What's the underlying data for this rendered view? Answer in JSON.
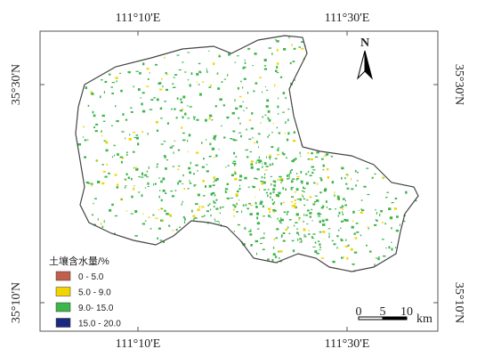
{
  "axes": {
    "top": [
      "111°10'E",
      "111°30'E"
    ],
    "bottom": [
      "111°10'E",
      "111°30'E"
    ],
    "left": [
      "35°30'N",
      "35°10'N"
    ],
    "right": [
      "35°30'N",
      "35°10'N"
    ]
  },
  "north": "N",
  "legend": {
    "title": "土壤含水量/%",
    "items": [
      {
        "label": "0 - 5.0",
        "color": "#c1604a"
      },
      {
        "label": "5.0 - 9.0",
        "color": "#f2d400"
      },
      {
        "label": "9.0- 15.0",
        "color": "#3cb54a"
      },
      {
        "label": "15.0 - 20.0",
        "color": "#1b2a80"
      }
    ]
  },
  "scale": {
    "ticks": [
      "0",
      "5",
      "10"
    ],
    "unit": "km"
  }
}
